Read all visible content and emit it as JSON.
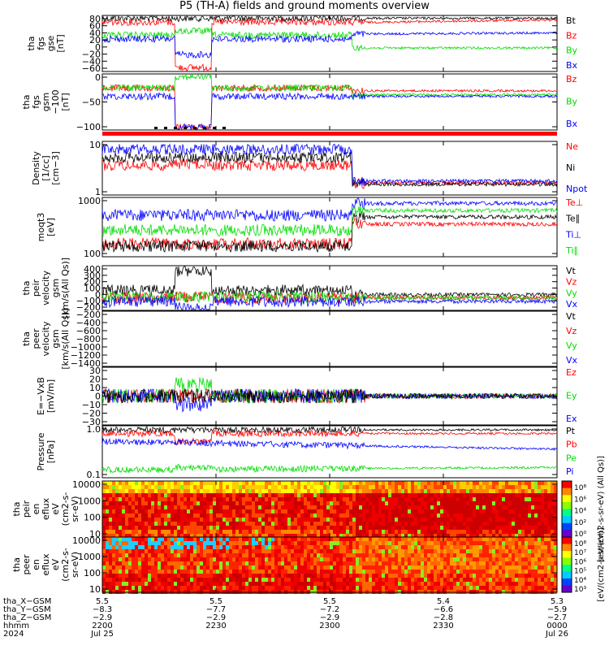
{
  "title": "P5 (TH-A) fields and ground moments overview",
  "colors": {
    "black": "#000000",
    "red": "#ff0000",
    "green": "#00dd00",
    "blue": "#0000ff"
  },
  "chart_data": [
    {
      "type": "line",
      "ylabel": [
        "tha",
        "fgs",
        "gse",
        "[nT]"
      ],
      "yticks": [
        "80",
        "60",
        "40",
        "20",
        "0",
        "−20",
        "−40",
        "−60"
      ],
      "legend": [
        {
          "label": "Bt",
          "color": "black"
        },
        {
          "label": "Bz",
          "color": "red"
        },
        {
          "label": "By",
          "color": "green"
        },
        {
          "label": "Bx",
          "color": "blue"
        }
      ]
    },
    {
      "type": "line",
      "ylabel": [
        "tha",
        "fgs",
        "gsm",
        "−100",
        "[nT]"
      ],
      "yticks": [
        "0",
        "−50",
        "−100"
      ],
      "legend": [
        {
          "label": "Bz",
          "color": "red"
        },
        {
          "label": "By",
          "color": "green"
        },
        {
          "label": "Bx",
          "color": "blue"
        }
      ]
    },
    {
      "type": "line",
      "ylabel": [
        "Density",
        "[1/cc]",
        "[cm−3]"
      ],
      "yticks": [
        "10",
        "1"
      ],
      "legend": [
        {
          "label": "Ne",
          "color": "red"
        },
        {
          "label": "Ni",
          "color": "black"
        },
        {
          "label": "Npot",
          "color": "blue"
        }
      ]
    },
    {
      "type": "line",
      "ylabel": [
        "moqt3",
        "[eV]"
      ],
      "yticks": [
        "1000",
        "100"
      ],
      "legend": [
        {
          "label": "Te⊥",
          "color": "red"
        },
        {
          "label": "Te∥",
          "color": "black"
        },
        {
          "label": "Ti⊥",
          "color": "blue"
        },
        {
          "label": "Ti∥",
          "color": "green"
        }
      ]
    },
    {
      "type": "line",
      "ylabel": [
        "tha",
        "peir",
        "velocity",
        "gsm",
        "[km/s(All Qs)]"
      ],
      "yticks": [
        "400",
        "300",
        "200",
        "100",
        "0",
        "−100",
        "−200"
      ],
      "legend": [
        {
          "label": "Vt",
          "color": "black"
        },
        {
          "label": "Vz",
          "color": "red"
        },
        {
          "label": "Vy",
          "color": "green"
        },
        {
          "label": "Vx",
          "color": "blue"
        }
      ]
    },
    {
      "type": "line",
      "ylabel": [
        "tha",
        "peer",
        "velocity",
        "gsm",
        "[km/s(All Qs)]"
      ],
      "yticks": [
        "−200",
        "−400",
        "−600",
        "−800",
        "−1000",
        "−1200",
        "−1400"
      ],
      "legend": [
        {
          "label": "Vt",
          "color": "black"
        },
        {
          "label": "Vz",
          "color": "red"
        },
        {
          "label": "Vy",
          "color": "green"
        },
        {
          "label": "Vx",
          "color": "blue"
        }
      ]
    },
    {
      "type": "line",
      "ylabel": [
        "E=−VxB",
        "[mV/m]"
      ],
      "yticks": [
        "30",
        "20",
        "10",
        "0",
        "−10",
        "−20",
        "−30"
      ],
      "legend": [
        {
          "label": "Ez",
          "color": "red"
        },
        {
          "label": "Ey",
          "color": "green"
        },
        {
          "label": "Ex",
          "color": "blue"
        }
      ]
    },
    {
      "type": "line",
      "ylabel": [
        "Pressure",
        "[nPa]"
      ],
      "yticks": [
        "1.0",
        "0.1"
      ],
      "legend": [
        {
          "label": "Pt",
          "color": "black"
        },
        {
          "label": "Pb",
          "color": "red"
        },
        {
          "label": "Pe",
          "color": "green"
        },
        {
          "label": "Pi",
          "color": "blue"
        }
      ]
    },
    {
      "type": "heatmap",
      "ylabel": [
        "tha",
        "peir",
        "en",
        "eflux",
        "eV",
        "(cm2-s-",
        "sr-eV)"
      ],
      "yticks": [
        "10000",
        "1000",
        "100",
        "10"
      ],
      "colorbar": {
        "label": "[eV/(cm2-s-sr-eV) (All Qs)]",
        "ticks": [
          "10⁸",
          "10⁶",
          "10⁴",
          "10²",
          "10⁰"
        ]
      }
    },
    {
      "type": "heatmap",
      "ylabel": [
        "tha",
        "peer",
        "en",
        "eflux",
        "eV",
        "(cm2-s-",
        "sr-eV)"
      ],
      "yticks": [
        "10000",
        "1000",
        "100",
        "10"
      ],
      "colorbar": {
        "label": "[eV/(cm2-s-sr-eV)]",
        "ticks": [
          "10⁸",
          "10⁷",
          "10⁶",
          "10⁵",
          "10⁴",
          "10³"
        ]
      }
    }
  ],
  "xaxis": {
    "rows": [
      {
        "label": "tha_X−GSM",
        "values": [
          "5.5",
          "5.5",
          "5.5",
          "5.4",
          "5.3"
        ]
      },
      {
        "label": "tha_Y−GSM",
        "values": [
          "−8.3",
          "−7.7",
          "−7.2",
          "−6.6",
          "−5.9"
        ]
      },
      {
        "label": "tha_Z−GSM",
        "values": [
          "−2.9",
          "−2.9",
          "−2.9",
          "−2.8",
          "−2.7"
        ]
      },
      {
        "label": "hhmm",
        "values": [
          "2200",
          "2230",
          "2300",
          "2330",
          "0000"
        ]
      },
      {
        "label": "2024",
        "values": [
          "Jul 25",
          "",
          "",
          "",
          "Jul 26"
        ]
      }
    ]
  }
}
